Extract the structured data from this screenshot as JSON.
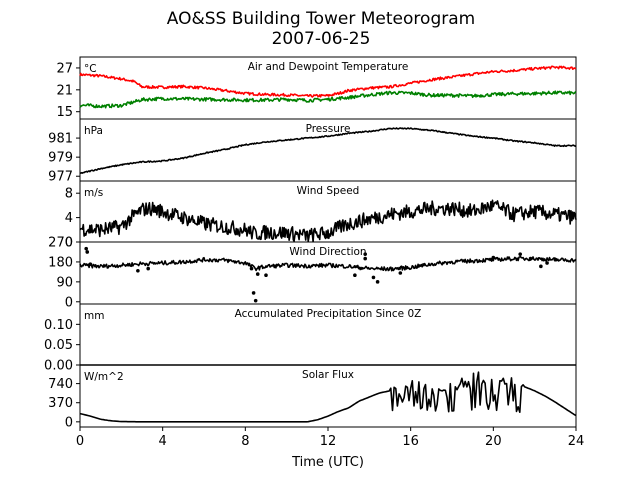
{
  "chart_data": {
    "type": "line",
    "title": "AO&SS Building Tower Meteorogram",
    "subtitle": "2007-06-25",
    "xlabel": "Time (UTC)",
    "xlim": [
      0,
      24
    ],
    "xticks": [
      "0",
      "4",
      "8",
      "12",
      "16",
      "20",
      "24"
    ],
    "panels": [
      {
        "title": "Air and Dewpoint Temperature",
        "unit": "°C",
        "ylim": [
          13,
          30
        ],
        "yticks": [
          "15",
          "21",
          "27"
        ],
        "ytick_values": [
          15,
          21,
          27
        ],
        "series": [
          {
            "color": "#ff0000",
            "noise": 0.35,
            "values": [
              [
                0,
                25.2
              ],
              [
                1,
                24.8
              ],
              [
                2,
                24.0
              ],
              [
                2.6,
                23.3
              ],
              [
                3,
                21.8
              ],
              [
                4,
                21.7
              ],
              [
                5,
                21.9
              ],
              [
                6,
                21.5
              ],
              [
                7,
                20.8
              ],
              [
                8,
                20.0
              ],
              [
                9,
                19.7
              ],
              [
                10,
                19.6
              ],
              [
                11,
                19.3
              ],
              [
                12,
                19.4
              ],
              [
                12.5,
                20.0
              ],
              [
                13,
                20.8
              ],
              [
                14,
                21.5
              ],
              [
                15,
                21.8
              ],
              [
                16,
                22.8
              ],
              [
                17,
                23.8
              ],
              [
                18,
                24.5
              ],
              [
                19,
                25.3
              ],
              [
                20,
                26.0
              ],
              [
                21,
                26.3
              ],
              [
                22,
                26.8
              ],
              [
                23,
                27.2
              ],
              [
                24,
                26.9
              ]
            ]
          },
          {
            "color": "#008000",
            "noise": 0.45,
            "values": [
              [
                0,
                16.8
              ],
              [
                1,
                16.5
              ],
              [
                2,
                16.7
              ],
              [
                3,
                18.3
              ],
              [
                4,
                18.6
              ],
              [
                5,
                18.5
              ],
              [
                6,
                18.4
              ],
              [
                7,
                18.3
              ],
              [
                8,
                18.2
              ],
              [
                9,
                18.2
              ],
              [
                10,
                18.4
              ],
              [
                11,
                18.1
              ],
              [
                12,
                18.4
              ],
              [
                13,
                18.9
              ],
              [
                14,
                19.6
              ],
              [
                15,
                20.2
              ],
              [
                16,
                20.1
              ],
              [
                17,
                19.5
              ],
              [
                18,
                19.5
              ],
              [
                19,
                19.3
              ],
              [
                20,
                19.7
              ],
              [
                21,
                19.9
              ],
              [
                22,
                20.0
              ],
              [
                23,
                20.2
              ],
              [
                24,
                20.1
              ]
            ]
          }
        ]
      },
      {
        "title": "Pressure",
        "unit": "hPa",
        "ylim": [
          976.5,
          983
        ],
        "yticks": [
          "977",
          "979",
          "981"
        ],
        "ytick_values": [
          977,
          979,
          981
        ],
        "series": [
          {
            "color": "#000000",
            "noise": 0.06,
            "values": [
              [
                0,
                977.3
              ],
              [
                1,
                977.8
              ],
              [
                2,
                978.2
              ],
              [
                3,
                978.5
              ],
              [
                4,
                978.6
              ],
              [
                5,
                978.9
              ],
              [
                6,
                979.4
              ],
              [
                7,
                979.8
              ],
              [
                8,
                980.3
              ],
              [
                9,
                980.6
              ],
              [
                10,
                980.8
              ],
              [
                11,
                981.0
              ],
              [
                12,
                981.2
              ],
              [
                13,
                981.5
              ],
              [
                14,
                981.7
              ],
              [
                15,
                982.0
              ],
              [
                16,
                982.0
              ],
              [
                17,
                981.8
              ],
              [
                18,
                981.5
              ],
              [
                19,
                981.2
              ],
              [
                20,
                981.0
              ],
              [
                21,
                980.7
              ],
              [
                22,
                980.5
              ],
              [
                23,
                980.2
              ],
              [
                24,
                980.2
              ]
            ]
          }
        ]
      },
      {
        "title": "Wind Speed",
        "unit": "m/s",
        "ylim": [
          0,
          10
        ],
        "yticks": [
          "0",
          "4",
          "8"
        ],
        "ytick_values": [
          0,
          4,
          8
        ],
        "series": [
          {
            "color": "#000000",
            "noise": 1.2,
            "values": [
              [
                0,
                2.2
              ],
              [
                1,
                2.0
              ],
              [
                2,
                2.5
              ],
              [
                2.5,
                4.0
              ],
              [
                3,
                5.3
              ],
              [
                3.5,
                5.5
              ],
              [
                4,
                5.0
              ],
              [
                5,
                4.0
              ],
              [
                6,
                3.0
              ],
              [
                7,
                2.5
              ],
              [
                8,
                2.0
              ],
              [
                8.5,
                1.3
              ],
              [
                9,
                1.6
              ],
              [
                10,
                1.5
              ],
              [
                11,
                1.0
              ],
              [
                12,
                1.5
              ],
              [
                13,
                3.0
              ],
              [
                14,
                3.8
              ],
              [
                15,
                4.5
              ],
              [
                16,
                5.0
              ],
              [
                17,
                5.5
              ],
              [
                18,
                5.5
              ],
              [
                19,
                5.0
              ],
              [
                20,
                6.0
              ],
              [
                21,
                4.5
              ],
              [
                22,
                5.0
              ],
              [
                23,
                4.5
              ],
              [
                24,
                4.0
              ]
            ]
          }
        ]
      },
      {
        "title": "Wind Direction",
        "unit": "",
        "ylim": [
          -10,
          270
        ],
        "yticks": [
          "0",
          "90",
          "180",
          "270"
        ],
        "ytick_values": [
          0,
          90,
          180,
          270
        ],
        "series": [
          {
            "color": "#000000",
            "noise": 9,
            "values": [
              [
                0,
                165
              ],
              [
                1,
                160
              ],
              [
                2,
                165
              ],
              [
                3,
                172
              ],
              [
                4,
                175
              ],
              [
                5,
                180
              ],
              [
                6,
                190
              ],
              [
                7,
                188
              ],
              [
                8,
                175
              ],
              [
                8.5,
                150
              ],
              [
                9,
                160
              ],
              [
                10,
                165
              ],
              [
                11,
                162
              ],
              [
                12,
                165
              ],
              [
                13,
                160
              ],
              [
                14,
                150
              ],
              [
                15,
                148
              ],
              [
                16,
                155
              ],
              [
                17,
                170
              ],
              [
                18,
                180
              ],
              [
                19,
                185
              ],
              [
                20,
                190
              ],
              [
                21,
                195
              ],
              [
                22,
                195
              ],
              [
                23,
                190
              ],
              [
                24,
                188
              ]
            ]
          }
        ],
        "points": [
          [
            0.3,
            240
          ],
          [
            0.35,
            225
          ],
          [
            0.5,
            170
          ],
          [
            2.8,
            140
          ],
          [
            3.3,
            150
          ],
          [
            8.3,
            150
          ],
          [
            8.4,
            40
          ],
          [
            8.5,
            5
          ],
          [
            8.6,
            125
          ],
          [
            9.0,
            120
          ],
          [
            13.3,
            120
          ],
          [
            13.8,
            215
          ],
          [
            13.8,
            195
          ],
          [
            14.2,
            110
          ],
          [
            14.4,
            90
          ],
          [
            15.5,
            130
          ],
          [
            20.0,
            200
          ],
          [
            21.3,
            215
          ],
          [
            21.8,
            195
          ],
          [
            22.3,
            160
          ],
          [
            22.6,
            175
          ],
          [
            23.0,
            190
          ]
        ]
      },
      {
        "title": "Accumulated Precipitation Since 0Z",
        "unit": "mm",
        "ylim": [
          0,
          0.15
        ],
        "yticks": [
          "0.00",
          "0.05",
          "0.10"
        ],
        "ytick_values": [
          0,
          0.05,
          0.1
        ],
        "series": [
          {
            "color": "#000000",
            "noise": 0,
            "values": [
              [
                0,
                0
              ],
              [
                24,
                0
              ]
            ]
          }
        ]
      },
      {
        "title": "Solar Flux",
        "unit": "W/m^2",
        "ylim": [
          -100,
          1100
        ],
        "yticks": [
          "0",
          "370",
          "740"
        ],
        "ytick_values": [
          0,
          370,
          740
        ],
        "series": [
          {
            "color": "#000000",
            "noise": 0,
            "values": [
              [
                0,
                160
              ],
              [
                0.5,
                110
              ],
              [
                1,
                50
              ],
              [
                1.5,
                20
              ],
              [
                2,
                5
              ],
              [
                3,
                0
              ],
              [
                6,
                0
              ],
              [
                9,
                0
              ],
              [
                11,
                0
              ],
              [
                11.5,
                40
              ],
              [
                12,
                110
              ],
              [
                12.5,
                200
              ],
              [
                13,
                270
              ],
              [
                13.5,
                400
              ],
              [
                14,
                480
              ],
              [
                14.5,
                560
              ],
              [
                15,
                600
              ],
              [
                15.5,
                700
              ],
              [
                16,
                720
              ],
              [
                17,
                700
              ],
              [
                18,
                650
              ],
              [
                19,
                860
              ],
              [
                20,
                840
              ],
              [
                21,
                780
              ],
              [
                21.5,
                680
              ],
              [
                22,
                600
              ],
              [
                22.5,
                500
              ],
              [
                23,
                380
              ],
              [
                23.5,
                250
              ],
              [
                24,
                120
              ]
            ]
          }
        ],
        "cloud_start": 15.0,
        "cloud_end": 21.5
      }
    ]
  }
}
